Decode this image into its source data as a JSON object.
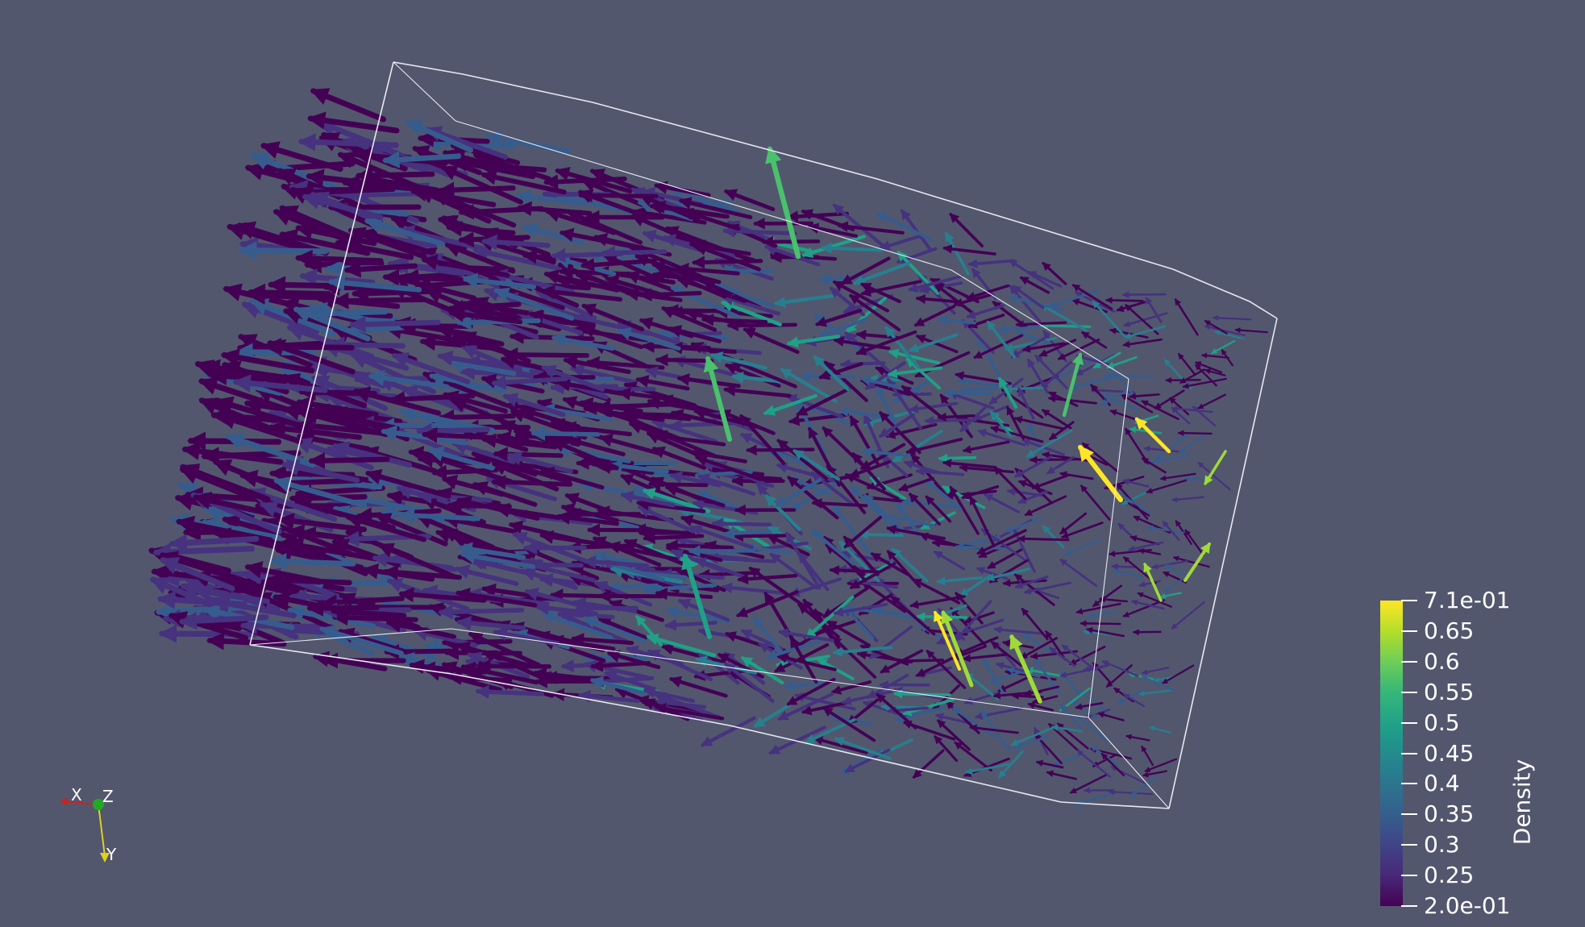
{
  "legend": {
    "title": "Density",
    "ticks": [
      "7.1e-01",
      "0.65",
      "0.6",
      "0.55",
      "0.5",
      "0.45",
      "0.4",
      "0.35",
      "0.3",
      "0.25",
      "2.0e-01"
    ],
    "colors": [
      "#440154",
      "#3e4a89",
      "#26828e",
      "#35b779",
      "#fde725"
    ]
  },
  "orientation_axes": {
    "x": "X",
    "y": "Y",
    "z": "Z"
  },
  "colors": {
    "background": "#52576e",
    "outline": "#ffffff"
  }
}
